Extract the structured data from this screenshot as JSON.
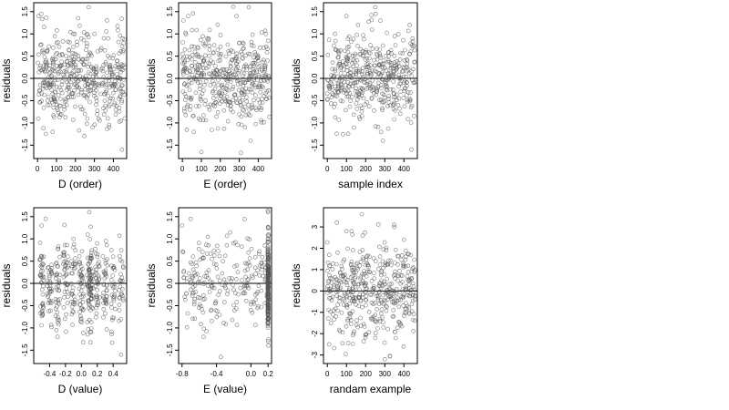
{
  "chart_data": [
    {
      "type": "scatter",
      "xlabel": "D (order)",
      "ylabel": "residuals",
      "xlim": [
        -20,
        470
      ],
      "ylim": [
        -1.8,
        1.7
      ],
      "xticks": [
        "0",
        "100",
        "200",
        "300",
        "400"
      ],
      "xtick_values": [
        0,
        100,
        200,
        300,
        400
      ],
      "yticks": [
        "-1.5",
        "-1.0",
        "-0.5",
        "0.0",
        "0.5",
        "1.0",
        "1.5"
      ],
      "ytick_values": [
        -1.5,
        -1,
        -0.5,
        0,
        0.5,
        1,
        1.5
      ],
      "zero_line": 0,
      "n_points": 450,
      "series": [
        {
          "points": [
            [
              2,
              0.35
            ],
            [
              5,
              1.4
            ],
            [
              20,
              1.45
            ],
            [
              30,
              -0.1
            ],
            [
              50,
              0.6
            ],
            [
              80,
              -1.2
            ],
            [
              100,
              0.8
            ],
            [
              150,
              -0.5
            ],
            [
              200,
              0.3
            ],
            [
              250,
              -0.8
            ],
            [
              270,
              1.6
            ],
            [
              290,
              -1.1
            ],
            [
              300,
              1.0
            ],
            [
              350,
              0.9
            ],
            [
              380,
              -0.2
            ],
            [
              420,
              0.4
            ],
            [
              445,
              -1.6
            ],
            [
              460,
              -0.9
            ]
          ]
        }
      ]
    },
    {
      "type": "scatter",
      "xlabel": "E (order)",
      "ylabel": "residuals",
      "xlim": [
        -20,
        470
      ],
      "ylim": [
        -1.8,
        1.7
      ],
      "xticks": [
        "0",
        "100",
        "200",
        "300",
        "400"
      ],
      "xtick_values": [
        0,
        100,
        200,
        300,
        400
      ],
      "yticks": [
        "-1.5",
        "-1.0",
        "-0.5",
        "0.0",
        "0.5",
        "1.0",
        "1.5"
      ],
      "ytick_values": [
        -1.5,
        -1,
        -0.5,
        0,
        0.5,
        1,
        1.5
      ],
      "zero_line": 0,
      "n_points": 450,
      "series": [
        {
          "points": [
            [
              5,
              1.3
            ],
            [
              30,
              1.4
            ],
            [
              60,
              -1.2
            ],
            [
              100,
              -1.65
            ],
            [
              130,
              0.9
            ],
            [
              200,
              0.5
            ],
            [
              240,
              -0.6
            ],
            [
              300,
              0.8
            ],
            [
              330,
              -1.1
            ],
            [
              350,
              1.6
            ],
            [
              360,
              -1.4
            ],
            [
              400,
              -0.2
            ],
            [
              440,
              1.0
            ],
            [
              450,
              0.4
            ]
          ]
        }
      ]
    },
    {
      "type": "scatter",
      "xlabel": "sample index",
      "ylabel": "residuals",
      "xlim": [
        -20,
        470
      ],
      "ylim": [
        -1.8,
        1.7
      ],
      "xticks": [
        "0",
        "100",
        "200",
        "300",
        "400"
      ],
      "xtick_values": [
        0,
        100,
        200,
        300,
        400
      ],
      "yticks": [
        "-1.5",
        "-1.0",
        "-0.5",
        "0.0",
        "0.5",
        "1.0",
        "1.5"
      ],
      "ytick_values": [
        -1.5,
        -1,
        -0.5,
        0,
        0.5,
        1,
        1.5
      ],
      "zero_line": 0,
      "n_points": 450,
      "series": [
        {
          "points": [
            [
              10,
              -0.2
            ],
            [
              40,
              1.0
            ],
            [
              100,
              1.4
            ],
            [
              160,
              1.2
            ],
            [
              250,
              1.6
            ],
            [
              280,
              -1.2
            ],
            [
              290,
              -1.4
            ],
            [
              320,
              0.5
            ],
            [
              370,
              -0.6
            ],
            [
              430,
              1.2
            ],
            [
              440,
              -1.6
            ],
            [
              455,
              -0.1
            ]
          ]
        }
      ]
    },
    {
      "type": "scatter",
      "xlabel": "D (value)",
      "ylabel": "residuals",
      "xlim": [
        -0.6,
        0.57
      ],
      "ylim": [
        -1.8,
        1.7
      ],
      "xticks": [
        "-0.4",
        "-0.2",
        "0.0",
        "0.2",
        "0.4"
      ],
      "xtick_values": [
        -0.4,
        -0.2,
        0,
        0.2,
        0.4
      ],
      "yticks": [
        "-1.5",
        "-1.0",
        "-0.5",
        "0.0",
        "0.5",
        "1.0",
        "1.5"
      ],
      "ytick_values": [
        -1.5,
        -1,
        -0.5,
        0,
        0.5,
        1,
        1.5
      ],
      "zero_line": 0,
      "n_points": 450,
      "series": [
        {
          "points": [
            [
              -0.5,
              1.3
            ],
            [
              -0.45,
              1.45
            ],
            [
              -0.3,
              -1.2
            ],
            [
              -0.2,
              0.5
            ],
            [
              -0.1,
              1.0
            ],
            [
              0.0,
              -0.8
            ],
            [
              0.1,
              1.6
            ],
            [
              0.12,
              -1.1
            ],
            [
              0.2,
              0.9
            ],
            [
              0.3,
              -0.4
            ],
            [
              0.4,
              0.6
            ],
            [
              0.5,
              -1.6
            ]
          ]
        }
      ]
    },
    {
      "type": "scatter",
      "xlabel": "E (value)",
      "ylabel": "residuals",
      "xlim": [
        -0.84,
        0.24
      ],
      "ylim": [
        -1.8,
        1.7
      ],
      "xticks": [
        "-0.8",
        "-0.4",
        "0.0",
        "0.2"
      ],
      "xtick_values": [
        -0.8,
        -0.4,
        0,
        0.2
      ],
      "yticks": [
        "-1.5",
        "-1.0",
        "-0.5",
        "0.0",
        "0.5",
        "1.0",
        "1.5"
      ],
      "ytick_values": [
        -1.5,
        -1,
        -0.5,
        0,
        0.5,
        1,
        1.5
      ],
      "zero_line": 0,
      "n_points": 450,
      "series": [
        {
          "points": [
            [
              -0.8,
              1.3
            ],
            [
              -0.7,
              1.45
            ],
            [
              -0.55,
              -1.2
            ],
            [
              -0.35,
              -1.65
            ],
            [
              -0.2,
              0.9
            ],
            [
              0.0,
              -0.6
            ],
            [
              0.2,
              1.6
            ],
            [
              0.2,
              -1.3
            ],
            [
              0.2,
              1.0
            ],
            [
              0.2,
              -0.8
            ]
          ]
        }
      ]
    },
    {
      "type": "scatter",
      "xlabel": "randam example",
      "ylabel": "residuals",
      "xlim": [
        -20,
        470
      ],
      "ylim": [
        -3.4,
        3.9
      ],
      "xticks": [
        "0",
        "100",
        "200",
        "300",
        "400"
      ],
      "xtick_values": [
        0,
        100,
        200,
        300,
        400
      ],
      "yticks": [
        "-3",
        "-2",
        "-1",
        "0",
        "1",
        "2",
        "3"
      ],
      "ytick_values": [
        -3,
        -2,
        -1,
        0,
        1,
        2,
        3
      ],
      "zero_line": 0,
      "n_points": 450,
      "series": [
        {
          "points": [
            [
              10,
              -2.5
            ],
            [
              50,
              3.2
            ],
            [
              100,
              2.8
            ],
            [
              180,
              3.6
            ],
            [
              250,
              -2.2
            ],
            [
              300,
              -3.2
            ],
            [
              350,
              3.0
            ],
            [
              400,
              2.4
            ],
            [
              450,
              1.1
            ]
          ]
        }
      ]
    }
  ]
}
